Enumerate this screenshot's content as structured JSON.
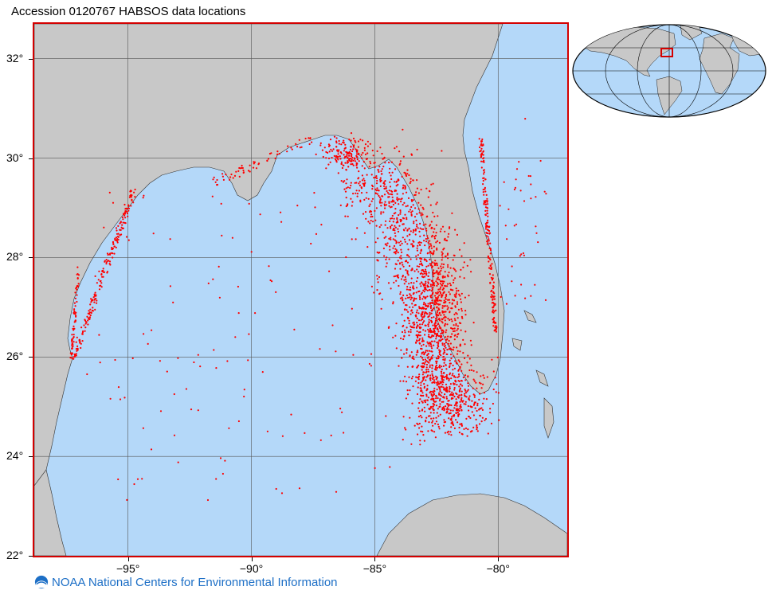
{
  "title": "Accession 0120767 HABSOS data locations",
  "footer": {
    "text": "NOAA National Centers for Environmental Information",
    "logo_icon": "noaa-logo-icon"
  },
  "map": {
    "lon_range": [
      -98.8,
      -77.2
    ],
    "lat_range": [
      22,
      32.7
    ],
    "y_ticks": [
      {
        "value": 32,
        "label": "32°"
      },
      {
        "value": 30,
        "label": "30°"
      },
      {
        "value": 28,
        "label": "28°"
      },
      {
        "value": 26,
        "label": "26°"
      },
      {
        "value": 24,
        "label": "24°"
      },
      {
        "value": 22,
        "label": "22°"
      }
    ],
    "x_ticks": [
      {
        "value": -95,
        "label": "−95°"
      },
      {
        "value": -90,
        "label": "−90°"
      },
      {
        "value": -85,
        "label": "−85°"
      },
      {
        "value": -80,
        "label": "−80°"
      }
    ],
    "colors": {
      "ocean": "#b4d8f9",
      "land": "#c8c8c8",
      "data": "#ff0000",
      "frame": "#d40000",
      "grid": "#555555"
    },
    "inset": {
      "type": "world-globe",
      "highlight": "Gulf of Mexico"
    }
  }
}
